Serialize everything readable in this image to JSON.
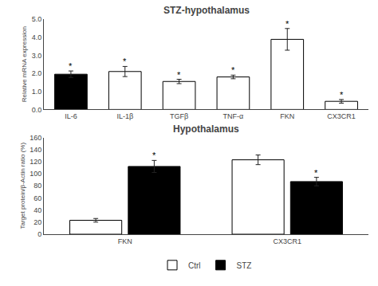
{
  "chart_data": [
    {
      "type": "bar",
      "title": "STZ-hypothalamus",
      "ylabel": "Relative mRNA expression",
      "categories": [
        "IL-6",
        "IL-1β",
        "TGFβ",
        "TNF-α",
        "FKN",
        "CX3CR1"
      ],
      "values": [
        1.95,
        2.1,
        1.55,
        1.8,
        3.88,
        0.45
      ],
      "errors": [
        0.18,
        0.28,
        0.12,
        0.1,
        0.6,
        0.1
      ],
      "colors": [
        "black",
        "white",
        "white",
        "white",
        "white",
        "white"
      ],
      "ylim": [
        0,
        5.0
      ],
      "yticks": [
        {
          "value": 0.0,
          "label": "0.0"
        },
        {
          "value": 1.0,
          "label": "1.0"
        },
        {
          "value": 2.0,
          "label": "2.0"
        },
        {
          "value": 3.0,
          "label": "3.0"
        },
        {
          "value": 4.0,
          "label": "4.0"
        },
        {
          "value": 5.0,
          "label": "5.0"
        }
      ],
      "grid": false,
      "annotations": [
        {
          "x": "IL-6",
          "text": "*"
        },
        {
          "x": "IL-1β",
          "text": "*"
        },
        {
          "x": "TGFβ",
          "text": "*"
        },
        {
          "x": "TNF-α",
          "text": "*"
        },
        {
          "x": "FKN",
          "text": "*"
        },
        {
          "x": "CX3CR1",
          "text": "*"
        }
      ]
    },
    {
      "type": "bar",
      "title": "Hypothalamus",
      "ylabel": "Target protein/β-Actin ratio (%)",
      "categories": [
        "FKN",
        "CX3CR1"
      ],
      "series": [
        {
          "name": "Ctrl",
          "color": "white",
          "values": [
            23,
            123
          ],
          "errors": [
            3,
            8
          ]
        },
        {
          "name": "STZ",
          "color": "black",
          "values": [
            112,
            87
          ],
          "errors": [
            10,
            7
          ]
        }
      ],
      "ylim": [
        0,
        160
      ],
      "yticks": [
        0,
        20,
        40,
        60,
        80,
        100,
        120,
        140,
        160
      ],
      "grid": false,
      "legend": "bottom",
      "annotations": [
        {
          "x": "FKN",
          "series": "STZ",
          "text": "*"
        },
        {
          "x": "CX3CR1",
          "series": "STZ",
          "text": "*"
        }
      ]
    }
  ]
}
